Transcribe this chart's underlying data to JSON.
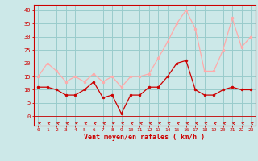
{
  "x": [
    0,
    1,
    2,
    3,
    4,
    5,
    6,
    7,
    8,
    9,
    10,
    11,
    12,
    13,
    14,
    15,
    16,
    17,
    18,
    19,
    20,
    21,
    22,
    23
  ],
  "wind_avg": [
    11,
    11,
    10,
    8,
    8,
    10,
    13,
    7,
    8,
    1,
    8,
    8,
    11,
    11,
    15,
    20,
    21,
    10,
    8,
    8,
    10,
    11,
    10,
    10
  ],
  "wind_gust": [
    15,
    20,
    17,
    13,
    15,
    13,
    16,
    13,
    15,
    11,
    15,
    15,
    16,
    22,
    28,
    35,
    40,
    33,
    17,
    17,
    25,
    37,
    26,
    30
  ],
  "avg_color": "#cc0000",
  "gust_color": "#ffaaaa",
  "bg_color": "#cce8e8",
  "grid_color": "#99cccc",
  "xlabel": "Vent moyen/en rafales ( km/h )",
  "xlabel_color": "#cc0000",
  "yticks": [
    0,
    5,
    10,
    15,
    20,
    25,
    30,
    35,
    40
  ],
  "xticks": [
    0,
    1,
    2,
    3,
    4,
    5,
    6,
    7,
    8,
    9,
    10,
    11,
    12,
    13,
    14,
    15,
    16,
    17,
    18,
    19,
    20,
    21,
    22,
    23
  ],
  "ylim": [
    -3.5,
    42
  ],
  "xlim": [
    -0.5,
    23.5
  ]
}
